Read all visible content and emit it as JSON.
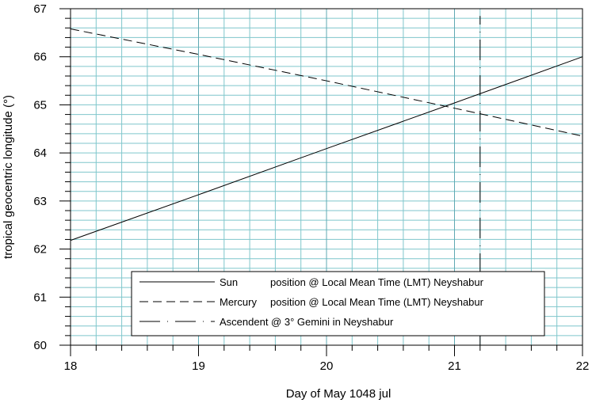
{
  "chart_data": {
    "type": "line",
    "xlabel": "Day of May 1048 jul",
    "ylabel": "tropical geocentric longitude (°)",
    "xlim": [
      18,
      22
    ],
    "ylim": [
      60,
      67
    ],
    "x_ticks": [
      "18",
      "19",
      "20",
      "21",
      "22"
    ],
    "y_ticks": [
      "60",
      "61",
      "62",
      "63",
      "64",
      "65",
      "66",
      "67"
    ],
    "grid": true,
    "grid_color": "#7fc6cc",
    "legend_position": "bottom-right",
    "series": [
      {
        "name": "Sun position @ Local Mean Time (LMT) Neyshabur",
        "label_body": "Sun",
        "label_suffix": "position @ Local Mean Time (LMT) Neyshabur",
        "style": "solid",
        "color": "#000000",
        "x": [
          18,
          19,
          20,
          21,
          22
        ],
        "y": [
          62.18,
          63.13,
          64.09,
          65.04,
          66.0
        ]
      },
      {
        "name": "Mercury position @ Local Mean Time (LMT) Neyshabur",
        "label_body": "Mercury",
        "label_suffix": "position @ Local Mean Time (LMT) Neyshabur",
        "style": "dashed",
        "color": "#000000",
        "x": [
          18,
          19,
          20,
          21,
          22
        ],
        "y": [
          66.58,
          66.05,
          65.5,
          64.93,
          64.35
        ]
      },
      {
        "name": "Ascendent @ 3° Gemini in Neyshabur",
        "label_body": "Ascendent @ 3° Gemini in Neyshabur",
        "label_suffix": "",
        "style": "dashdot",
        "color": "#000000",
        "x": [
          21.2,
          21.2
        ],
        "y": [
          60.0,
          66.85
        ]
      }
    ]
  }
}
